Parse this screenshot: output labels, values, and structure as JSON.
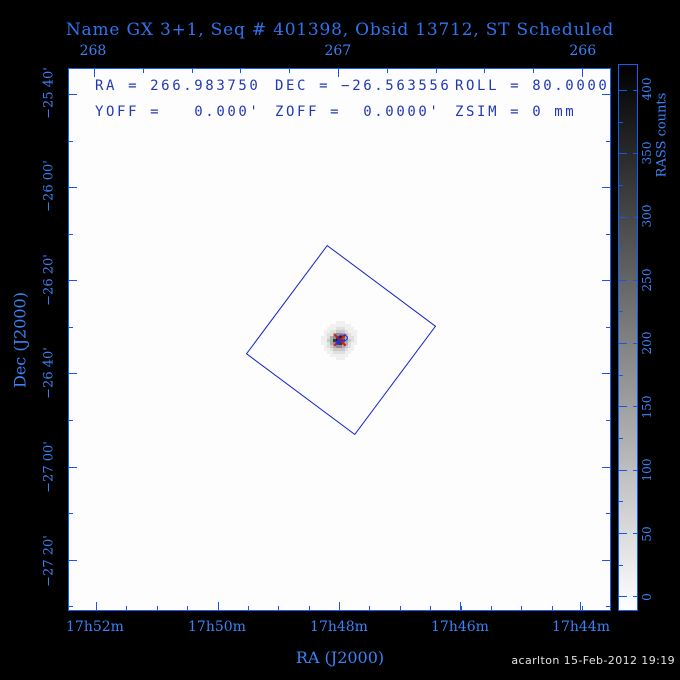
{
  "title": "Name GX 3+1, Seq # 401398, Obsid 13712, ST Scheduled",
  "info": {
    "row1": [
      "RA = 266.983750",
      "DEC = −26.563556",
      "ROLL = 80.0000"
    ],
    "row2": [
      "YOFF =   0.000'",
      "ZOFF =  0.0000'",
      "ZSIM = 0 mm"
    ]
  },
  "axes": {
    "top": {
      "labels": [
        "268",
        "267",
        "266"
      ],
      "positions": [
        0.046,
        0.497,
        0.948
      ],
      "subdiv": 5
    },
    "bottom": {
      "title": "RA (J2000)",
      "labels": [
        "17h52m",
        "17h50m",
        "17h48m",
        "17h46m",
        "17h44m"
      ],
      "positions": [
        0.0497,
        0.2744,
        0.4991,
        0.7219,
        0.9448
      ],
      "subdiv": 4
    },
    "left": {
      "title": "Dec (J2000)",
      "labels": [
        "−25 40'",
        "−26 00'",
        "−26 20'",
        "−26 40'",
        "−27 00'",
        "−27 20'"
      ],
      "positions": [
        0.046,
        0.2182,
        0.3904,
        0.5626,
        0.7348,
        0.907
      ],
      "subdiv": 2
    }
  },
  "colorbar": {
    "title": "RASS counts",
    "labels": [
      "400",
      "350",
      "300",
      "250",
      "200",
      "150",
      "100",
      "50",
      "0"
    ],
    "positions": [
      0.0457,
      0.1618,
      0.2779,
      0.394,
      0.5101,
      0.6262,
      0.7423,
      0.8584,
      0.9745
    ],
    "subdiv": 2,
    "colormap_top": "#000000",
    "colormap_bottom": "#ffffff"
  },
  "footer": {
    "credit": "acarlton 15-Feb-2012 19:19"
  },
  "colors": {
    "background": "#000000",
    "label_blue": "#3a82f7",
    "frame_blue": "#1656e8",
    "inplot_blue": "#2138b8",
    "fov_blue": "#1520c8",
    "marker_red": "#d81414",
    "marker_blue": "#2030e0"
  },
  "source_blob": {
    "palette": {
      "1": "#f0f0f0",
      "2": "#e0e0e0",
      "3": "#c9c9c9",
      "4": "#adadad",
      "5": "#8f8f8f",
      "6": "#717171",
      "7": "#575757",
      "8": "#3a3a3a",
      "9": "#181818"
    },
    "rows": [
      "0000011100000",
      "0001111111000",
      "0011122211100",
      "0112233321110",
      "0122455432110",
      "1124589642210",
      "1134899743210",
      "1124578542110",
      "0123455432100",
      "0112333321100",
      "0011222211000",
      "0001111110000",
      "0000011100000"
    ]
  },
  "chart_data": {
    "type": "heatmap",
    "title": "Name GX 3+1, Seq # 401398, Obsid 13712, ST Scheduled",
    "xlabel": "RA (J2000)",
    "ylabel": "Dec (J2000)",
    "x_ticks_top_ra_deg": [
      268,
      267,
      266
    ],
    "x_ticks_bottom_ra_hours": [
      "17h52m",
      "17h50m",
      "17h48m",
      "17h46m",
      "17h44m"
    ],
    "y_ticks_dec": [
      "−25 40'",
      "−26 00'",
      "−26 20'",
      "−26 40'",
      "−27 00'",
      "−27 20'"
    ],
    "x_range_ra_deg": [
      268.1,
      265.89
    ],
    "y_range_dec_deg": [
      -25.58,
      -27.51
    ],
    "grid": false,
    "colorbar": {
      "label": "RASS counts",
      "range": [
        0,
        420
      ],
      "tick_step": 50,
      "minor_tick_step": 25,
      "colormap": "inverse-grayscale"
    },
    "target": {
      "name": "GX 3+1",
      "ra_deg": 266.98375,
      "dec_deg": -26.563556,
      "markers": [
        "red-x",
        "blue-ellipse",
        "blue-diamond"
      ]
    },
    "fov": {
      "shape": "square",
      "roll_deg": 80.0,
      "size_arcmin_est": 29,
      "center_ra_deg": 266.98375,
      "center_dec_deg": -26.563556
    },
    "params": {
      "RA": "266.983750",
      "DEC": "−26.563556",
      "ROLL": "80.0000",
      "YOFF": "0.000'",
      "ZOFF": "0.0000'",
      "ZSIM": "0 mm"
    }
  }
}
